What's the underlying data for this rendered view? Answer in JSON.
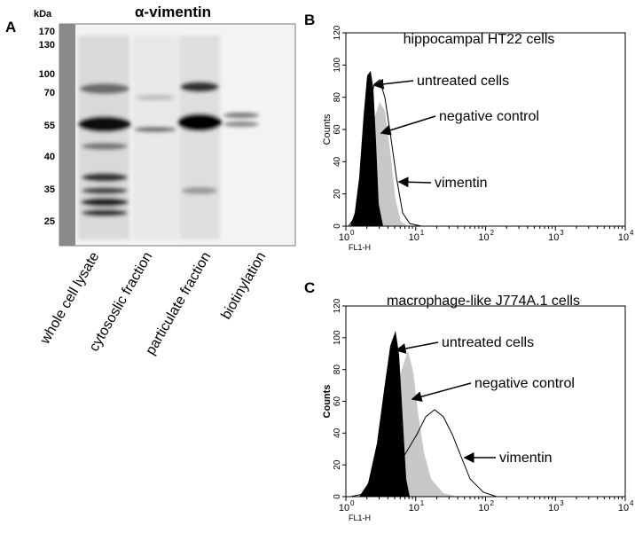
{
  "figure": {
    "panel_a": {
      "label": "A",
      "title": "α-vimentin",
      "unit": "kDa",
      "markers": [
        170,
        130,
        100,
        70,
        55,
        40,
        35,
        25
      ],
      "lanes": [
        "whole cell lysate",
        "cytososlic fraction",
        "particulate fraction",
        "biotinylation"
      ]
    },
    "panel_b": {
      "label": "B",
      "title": "hippocampal HT22 cells",
      "y_axis_label": "Counts",
      "x_axis_label": "FL1-H",
      "yticks": [
        0,
        20,
        40,
        60,
        80,
        100,
        120
      ],
      "xticks": [
        {
          "base": "10",
          "exp": "0"
        },
        {
          "base": "10",
          "exp": "1"
        },
        {
          "base": "10",
          "exp": "2"
        },
        {
          "base": "10",
          "exp": "3"
        },
        {
          "base": "10",
          "exp": "4"
        }
      ],
      "annotations": [
        "untreated cells",
        "negative control",
        "vimentin"
      ]
    },
    "panel_c": {
      "label": "C",
      "title": "macrophage-like J774A.1 cells",
      "y_axis_label": "Counts",
      "x_axis_label": "FL1-H",
      "yticks": [
        0,
        20,
        40,
        60,
        80,
        100,
        120
      ],
      "xticks": [
        {
          "base": "10",
          "exp": "0"
        },
        {
          "base": "10",
          "exp": "1"
        },
        {
          "base": "10",
          "exp": "2"
        },
        {
          "base": "10",
          "exp": "3"
        },
        {
          "base": "10",
          "exp": "4"
        }
      ],
      "annotations": [
        "untreated cells",
        "negative control",
        "vimentin"
      ]
    }
  }
}
